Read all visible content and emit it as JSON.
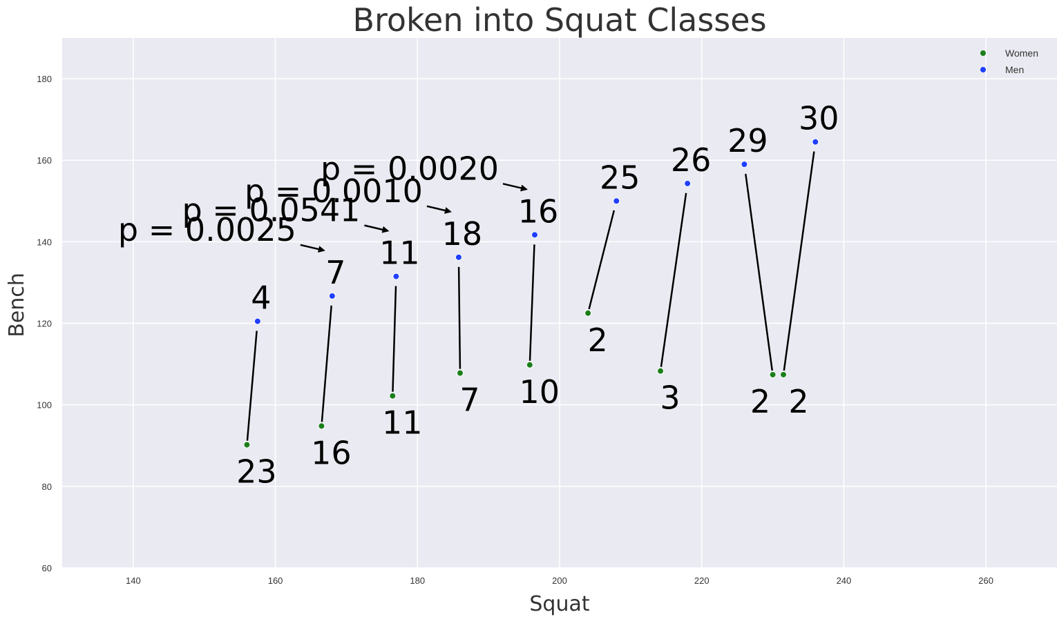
{
  "chart_data": {
    "type": "scatter",
    "title": "Broken into Squat Classes",
    "xlabel": "Squat",
    "ylabel": "Bench",
    "xlim": [
      130,
      270
    ],
    "ylim": [
      60,
      190
    ],
    "xticks": [
      140,
      160,
      180,
      200,
      220,
      240,
      260
    ],
    "yticks": [
      60,
      80,
      100,
      120,
      140,
      160,
      180
    ],
    "grid": true,
    "legend_position": "top-right",
    "series": [
      {
        "name": "Women",
        "color": "#1a7f1a",
        "points": [
          {
            "x": 156.0,
            "y": 90.2,
            "count": "23"
          },
          {
            "x": 166.5,
            "y": 94.8,
            "count": "16"
          },
          {
            "x": 176.5,
            "y": 102.2,
            "count": "11"
          },
          {
            "x": 186.0,
            "y": 107.8,
            "count": "7"
          },
          {
            "x": 195.8,
            "y": 109.8,
            "count": "10"
          },
          {
            "x": 204.0,
            "y": 122.5,
            "count": "2"
          },
          {
            "x": 214.2,
            "y": 108.3,
            "count": "3"
          },
          {
            "x": 230.0,
            "y": 107.4,
            "count": "2"
          },
          {
            "x": 231.5,
            "y": 107.4,
            "count": "2"
          }
        ]
      },
      {
        "name": "Men",
        "color": "#1f3fff",
        "points": [
          {
            "x": 157.5,
            "y": 120.5,
            "count": "4"
          },
          {
            "x": 168.0,
            "y": 126.7,
            "count": "7"
          },
          {
            "x": 177.0,
            "y": 131.5,
            "count": "11"
          },
          {
            "x": 185.8,
            "y": 136.2,
            "count": "18"
          },
          {
            "x": 196.5,
            "y": 141.7,
            "count": "16"
          },
          {
            "x": 208.0,
            "y": 150.0,
            "count": "25"
          },
          {
            "x": 218.0,
            "y": 154.3,
            "count": "26"
          },
          {
            "x": 226.0,
            "y": 159.0,
            "count": "29"
          },
          {
            "x": 236.0,
            "y": 164.5,
            "count": "30"
          }
        ]
      }
    ],
    "pairs": [
      [
        0,
        0
      ],
      [
        1,
        1
      ],
      [
        2,
        2
      ],
      [
        3,
        3
      ],
      [
        4,
        4
      ],
      [
        5,
        5
      ],
      [
        6,
        6
      ],
      [
        7,
        7
      ],
      [
        8,
        8
      ]
    ],
    "p_values": [
      {
        "text": "p = 0.0025",
        "pair": 1
      },
      {
        "text": "p = 0.0541",
        "pair": 2
      },
      {
        "text": "p = 0.0010",
        "pair": 3
      },
      {
        "text": "p = 0.0020",
        "pair": 4
      }
    ]
  }
}
